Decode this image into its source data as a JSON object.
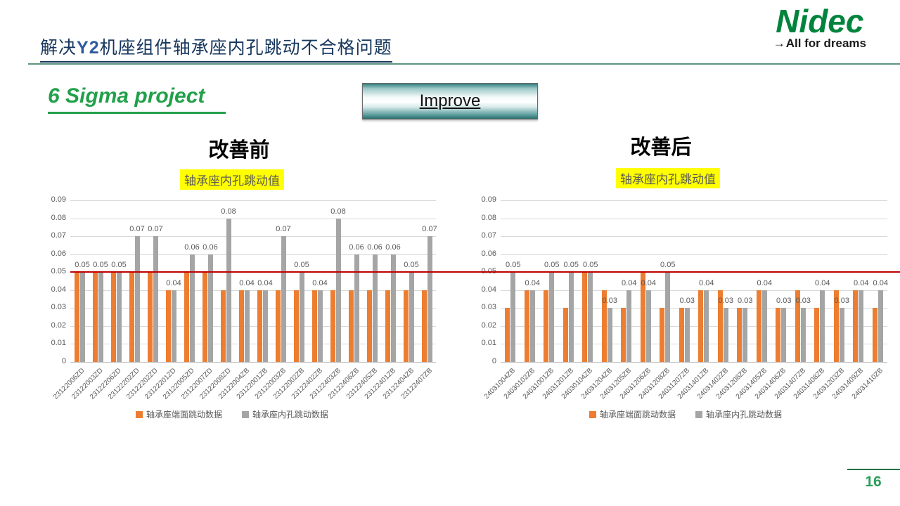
{
  "slide": {
    "title": {
      "pre": "解决",
      "model": "Y2",
      "post": "机座组件轴承座内孔跳动不合格问题"
    },
    "logo": {
      "brand": "Nidec",
      "tagline_arrow": "→",
      "tagline": "All for dreams"
    },
    "project_label": "6 Sigma project",
    "phase_label": "Improve",
    "page_number": "16",
    "colors": {
      "title_navy": "#17375E",
      "brand_green": "#00843D",
      "project_green": "#21A04A",
      "highlight_yellow": "#FFFF00",
      "ref_line_red": "#C00000",
      "series_face_orange": "#ED7D31",
      "series_bore_gray": "#A5A5A5"
    }
  },
  "chart_data": [
    {
      "id": "before",
      "type": "bar",
      "heading": "改善前",
      "title": "轴承座内孔跳动值",
      "categories": [
        "23122006ZD",
        "23122003ZD",
        "23122206ZD",
        "23122202ZD",
        "23122202ZD",
        "23122201ZD",
        "23122005ZD",
        "23122007ZD",
        "23122008ZD",
        "23122004ZB",
        "23122001ZB",
        "23122003ZB",
        "23122002ZB",
        "23122402ZB",
        "23122403ZB",
        "23122406ZB",
        "23122405ZB",
        "23122401ZB",
        "23122404ZB",
        "23122407ZB"
      ],
      "series": [
        {
          "name": "轴承座端面跳动数据",
          "color": "#ED7D31",
          "data_labels": false,
          "values": [
            0.05,
            0.05,
            0.05,
            0.05,
            0.05,
            0.04,
            0.05,
            0.05,
            0.04,
            0.04,
            0.04,
            0.04,
            0.04,
            0.04,
            0.04,
            0.04,
            0.04,
            0.04,
            0.04,
            0.04
          ]
        },
        {
          "name": "轴承座内孔跳动数据",
          "color": "#A5A5A5",
          "data_labels": true,
          "values": [
            0.05,
            0.05,
            0.05,
            0.07,
            0.07,
            0.04,
            0.06,
            0.06,
            0.08,
            0.04,
            0.04,
            0.07,
            0.05,
            0.04,
            0.08,
            0.06,
            0.06,
            0.06,
            0.05,
            0.07
          ]
        }
      ],
      "ylim": [
        0,
        0.09
      ],
      "yticks": [
        "0",
        "0.01",
        "0.02",
        "0.03",
        "0.04",
        "0.05",
        "0.06",
        "0.07",
        "0.08",
        "0.09"
      ],
      "grid": true,
      "ref_line": {
        "value": 0.05,
        "color": "#C00000"
      },
      "legend_position": "bottom"
    },
    {
      "id": "after",
      "type": "bar",
      "heading": "改善后",
      "title": "轴承座内孔跳动值",
      "categories": [
        "24031004ZB",
        "24030102ZB",
        "24031001ZB",
        "24031201ZB",
        "24030104ZB",
        "24031204ZB",
        "24031205ZB",
        "24031206ZB",
        "24031208ZB",
        "24031207ZB",
        "24031401ZB",
        "24031402ZB",
        "24031208ZB",
        "24031405ZB",
        "24031406ZB",
        "24031407ZB",
        "24031408ZB",
        "24031203ZB",
        "24031409ZB",
        "24031410ZB"
      ],
      "series": [
        {
          "name": "轴承座端面跳动数据",
          "color": "#ED7D31",
          "data_labels": false,
          "values": [
            0.03,
            0.04,
            0.04,
            0.03,
            0.05,
            0.04,
            0.03,
            0.05,
            0.03,
            0.03,
            0.04,
            0.04,
            0.03,
            0.04,
            0.03,
            0.04,
            0.03,
            0.04,
            0.04,
            0.03
          ]
        },
        {
          "name": "轴承座内孔跳动数据",
          "color": "#A5A5A5",
          "data_labels": true,
          "values": [
            0.05,
            0.04,
            0.05,
            0.05,
            0.05,
            0.03,
            0.04,
            0.04,
            0.05,
            0.03,
            0.04,
            0.03,
            0.03,
            0.04,
            0.03,
            0.03,
            0.04,
            0.03,
            0.04,
            0.04
          ]
        }
      ],
      "ylim": [
        0,
        0.09
      ],
      "yticks": [
        "0",
        "0.01",
        "0.02",
        "0.03",
        "0.04",
        "0.05",
        "0.06",
        "0.07",
        "0.08",
        "0.09"
      ],
      "grid": true,
      "ref_line": {
        "value": 0.05,
        "color": "#C00000"
      },
      "legend_position": "bottom"
    }
  ]
}
